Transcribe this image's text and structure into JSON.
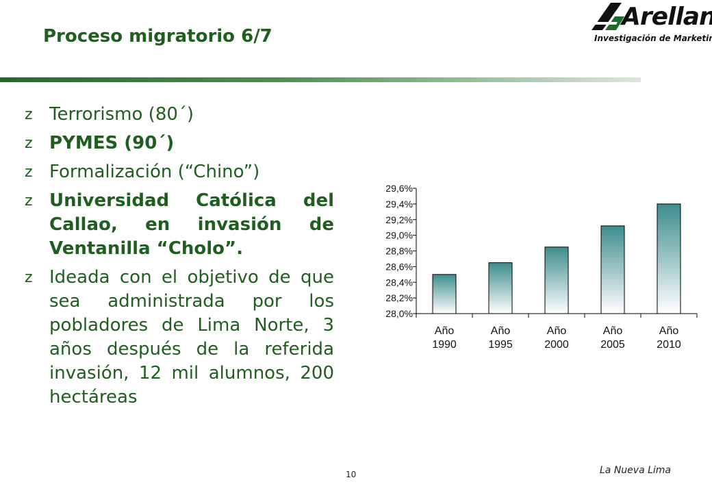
{
  "slide": {
    "title": "Proceso migratorio 6/7",
    "page_number": "10",
    "footer": "La Nueva Lima"
  },
  "logo": {
    "name": "Arellano",
    "tagline": "Investigación de Marketing",
    "colors": {
      "green": "#1f6b2a",
      "black": "#111111"
    }
  },
  "bullets": [
    {
      "text": "Terrorismo (80´)",
      "bold": false
    },
    {
      "text": "PYMES (90´)",
      "bold": true
    },
    {
      "text": "Formalización (“Chino”)",
      "bold": false
    },
    {
      "text": "Universidad Católica del Callao, en invasión de Ventanilla “Cholo”.",
      "bold": true
    },
    {
      "text": "Ideada con el objetivo de que sea administrada por los pobladores de Lima Norte, 3 años después de la referida invasión, 12 mil alumnos, 200 hectáreas",
      "bold": false
    }
  ],
  "bullet_glyph": "z",
  "colors": {
    "text_green": "#1f5e1f",
    "bar_top": "#3e8c8c",
    "bar_bottom": "#ffffff"
  },
  "chart_data": {
    "type": "bar",
    "categories": [
      [
        "Año",
        "1990"
      ],
      [
        "Año",
        "1995"
      ],
      [
        "Año",
        "2000"
      ],
      [
        "Año",
        "2005"
      ],
      [
        "Año",
        "2010"
      ]
    ],
    "values": [
      28.5,
      28.65,
      28.85,
      29.12,
      29.4
    ],
    "ylim": [
      28.0,
      29.6
    ],
    "yticks": [
      "28,0%",
      "28,2%",
      "28,4%",
      "28,6%",
      "28,8%",
      "29,0%",
      "29,2%",
      "29,4%",
      "29,6%"
    ],
    "title": "",
    "xlabel": "",
    "ylabel": "",
    "grid": false,
    "legend": "none"
  }
}
